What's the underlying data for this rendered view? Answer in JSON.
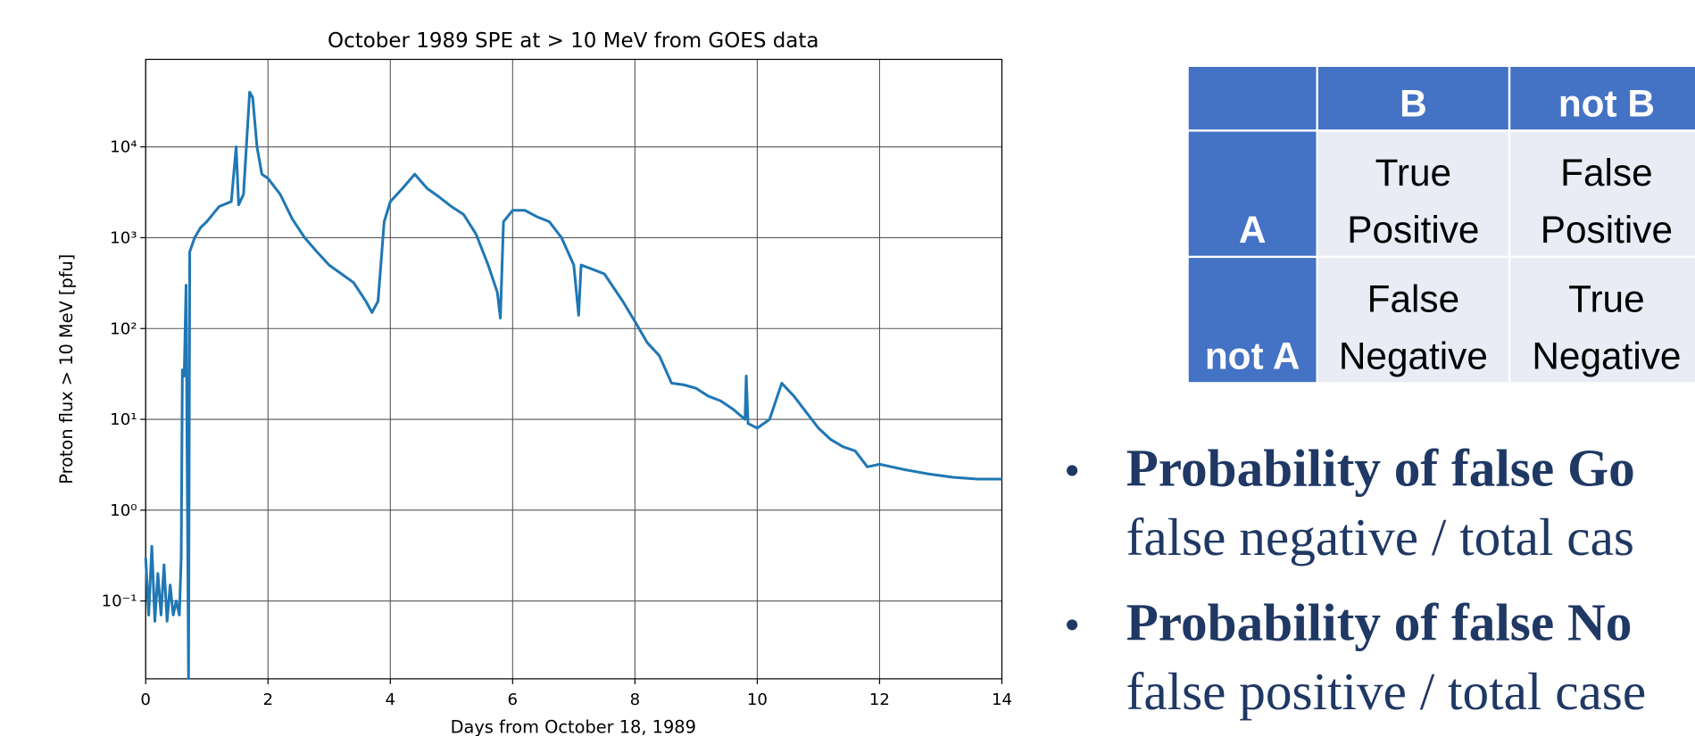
{
  "chart_data": {
    "type": "line",
    "title": "October 1989 SPE at > 10 MeV from GOES data",
    "x_label": "Days from October 18, 1989",
    "y_label": "Proton flux > 10 MeV [pfu]",
    "xlim": [
      0,
      14
    ],
    "xticks": [
      0,
      2,
      4,
      6,
      8,
      10,
      12,
      14
    ],
    "ylim": [
      0.0139,
      92000
    ],
    "log_y": true,
    "grid": true,
    "yticks": [
      {
        "value": 0.1,
        "label": "10⁻¹"
      },
      {
        "value": 1,
        "label": "10⁰"
      },
      {
        "value": 10,
        "label": "10¹"
      },
      {
        "value": 100,
        "label": "10²"
      },
      {
        "value": 1000,
        "label": "10³"
      },
      {
        "value": 10000,
        "label": "10⁴"
      }
    ],
    "x": [
      0,
      0.05,
      0.1,
      0.15,
      0.2,
      0.25,
      0.3,
      0.35,
      0.4,
      0.45,
      0.5,
      0.55,
      0.58,
      0.6,
      0.63,
      0.66,
      0.7,
      0.72,
      0.8,
      0.9,
      1.0,
      1.2,
      1.4,
      1.48,
      1.52,
      1.6,
      1.7,
      1.75,
      1.82,
      1.9,
      2.0,
      2.2,
      2.4,
      2.6,
      2.8,
      3.0,
      3.2,
      3.4,
      3.6,
      3.7,
      3.8,
      3.9,
      4.0,
      4.2,
      4.4,
      4.6,
      4.8,
      5.0,
      5.2,
      5.4,
      5.6,
      5.75,
      5.8,
      5.85,
      6.0,
      6.2,
      6.4,
      6.6,
      6.8,
      7.0,
      7.08,
      7.12,
      7.3,
      7.5,
      7.8,
      8.0,
      8.2,
      8.4,
      8.6,
      8.8,
      9.0,
      9.2,
      9.4,
      9.6,
      9.8,
      9.82,
      9.85,
      10.0,
      10.2,
      10.4,
      10.6,
      10.8,
      11.0,
      11.2,
      11.4,
      11.6,
      11.8,
      12.0,
      12.4,
      12.8,
      13.2,
      13.6,
      14.0
    ],
    "series": [
      {
        "color": "#1f77b4",
        "values": [
          0.3,
          0.07,
          0.4,
          0.06,
          0.2,
          0.07,
          0.25,
          0.06,
          0.15,
          0.07,
          0.1,
          0.07,
          0.3,
          35,
          30,
          300,
          0.014,
          700,
          1000,
          1300,
          1500,
          2200,
          2500,
          10000,
          2300,
          3000,
          40000,
          35000,
          10000,
          5000,
          4500,
          3000,
          1600,
          1000,
          700,
          500,
          400,
          320,
          200,
          150,
          200,
          1500,
          2500,
          3500,
          5000,
          3500,
          2800,
          2200,
          1800,
          1100,
          500,
          250,
          130,
          1500,
          2000,
          2000,
          1700,
          1500,
          1000,
          500,
          140,
          500,
          450,
          400,
          200,
          120,
          70,
          50,
          25,
          24,
          22,
          18,
          16,
          13,
          10,
          30,
          9,
          8,
          10,
          25,
          18,
          12,
          8,
          6,
          5,
          4.5,
          3,
          3.2,
          2.8,
          2.5,
          2.3,
          2.2,
          2.2
        ]
      }
    ]
  },
  "table": {
    "header": [
      "B",
      "not B"
    ],
    "rows": [
      {
        "label": "A",
        "cells": [
          [
            "True",
            "Positive"
          ],
          [
            "False",
            "Positive"
          ]
        ]
      },
      {
        "label": "not A",
        "cells": [
          [
            "False",
            "Negative"
          ],
          [
            "True",
            "Negative"
          ]
        ]
      }
    ]
  },
  "bullets": [
    {
      "bold": "Probability of false Go",
      "text": "false negative / total cas"
    },
    {
      "bold": "Probability of false No",
      "text": "false positive / total case"
    }
  ]
}
